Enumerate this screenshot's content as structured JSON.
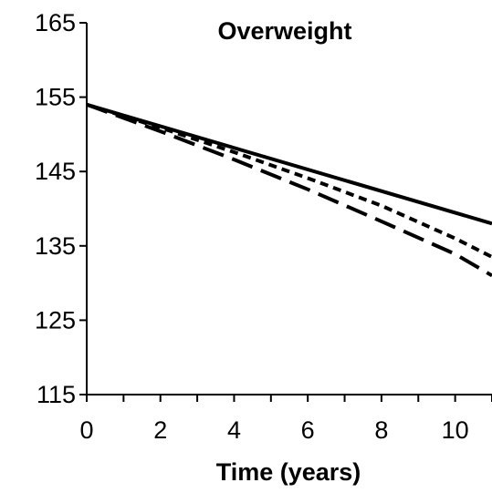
{
  "chart_data": {
    "type": "line",
    "title": "Overweight",
    "xlabel": "Time (years)",
    "ylabel": "",
    "xlim": [
      0,
      11
    ],
    "ylim": [
      115,
      165
    ],
    "xticks": [
      0,
      2,
      4,
      6,
      8,
      10
    ],
    "xminor_step": 1,
    "yticks": [
      115,
      125,
      135,
      145,
      155,
      165
    ],
    "grid": false,
    "legend": "none",
    "series": [
      {
        "style": "solid",
        "color": "#000000",
        "x": [
          0,
          11
        ],
        "y": [
          154,
          138
        ]
      },
      {
        "style": "short-dash",
        "color": "#000000",
        "x": [
          0,
          2,
          4,
          6,
          8,
          10,
          11
        ],
        "y": [
          154,
          150.9,
          147.6,
          144.1,
          140.4,
          136.0,
          133.5
        ]
      },
      {
        "style": "long-dash",
        "color": "#000000",
        "x": [
          0,
          2,
          4,
          6,
          8,
          10,
          11
        ],
        "y": [
          154,
          150.4,
          146.6,
          142.6,
          138.3,
          133.9,
          131.0
        ]
      }
    ]
  }
}
